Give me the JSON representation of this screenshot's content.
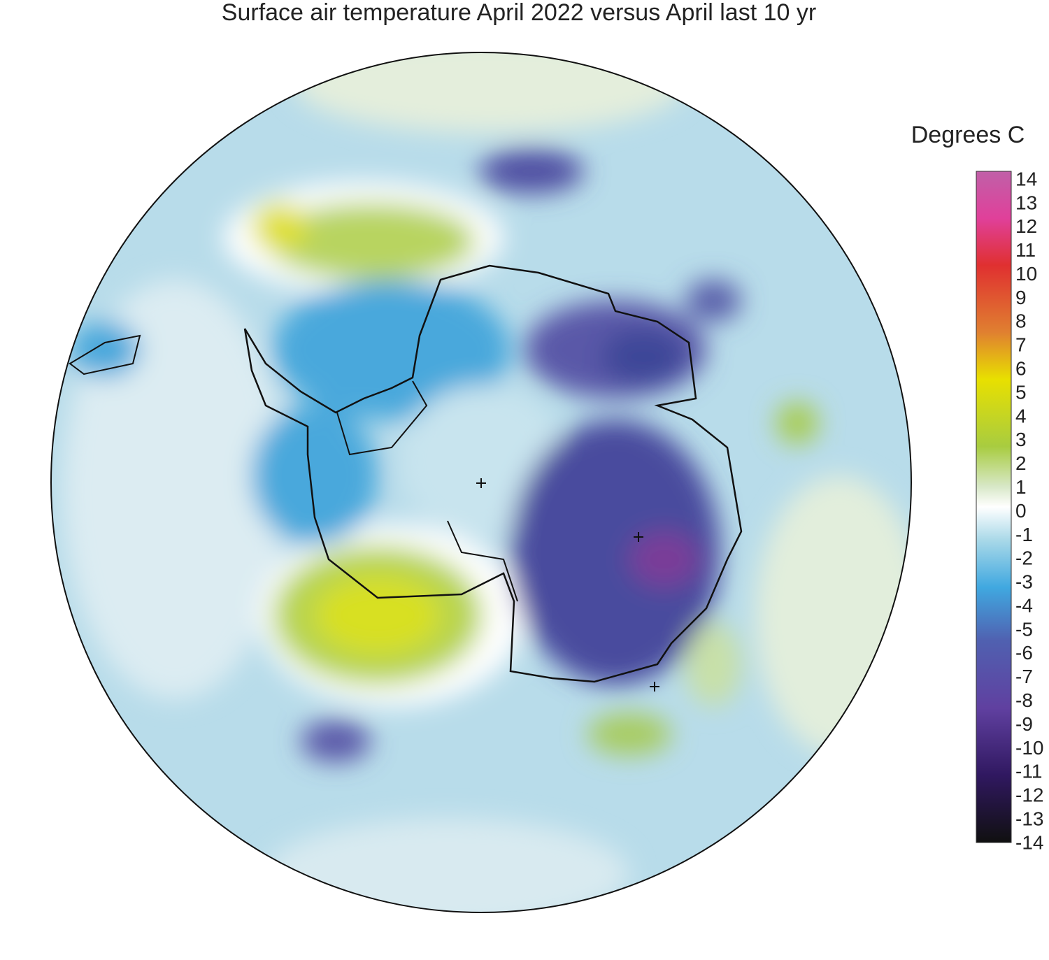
{
  "title": "Surface air temperature April 2022 versus April last 10 yr",
  "colorbar": {
    "label": "Degrees C",
    "ticks": [
      14,
      13,
      12,
      11,
      10,
      9,
      8,
      7,
      6,
      5,
      4,
      3,
      2,
      1,
      0,
      -1,
      -2,
      -3,
      -4,
      -5,
      -6,
      -7,
      -8,
      -9,
      -10,
      -11,
      -12,
      -13,
      -14
    ]
  }
}
